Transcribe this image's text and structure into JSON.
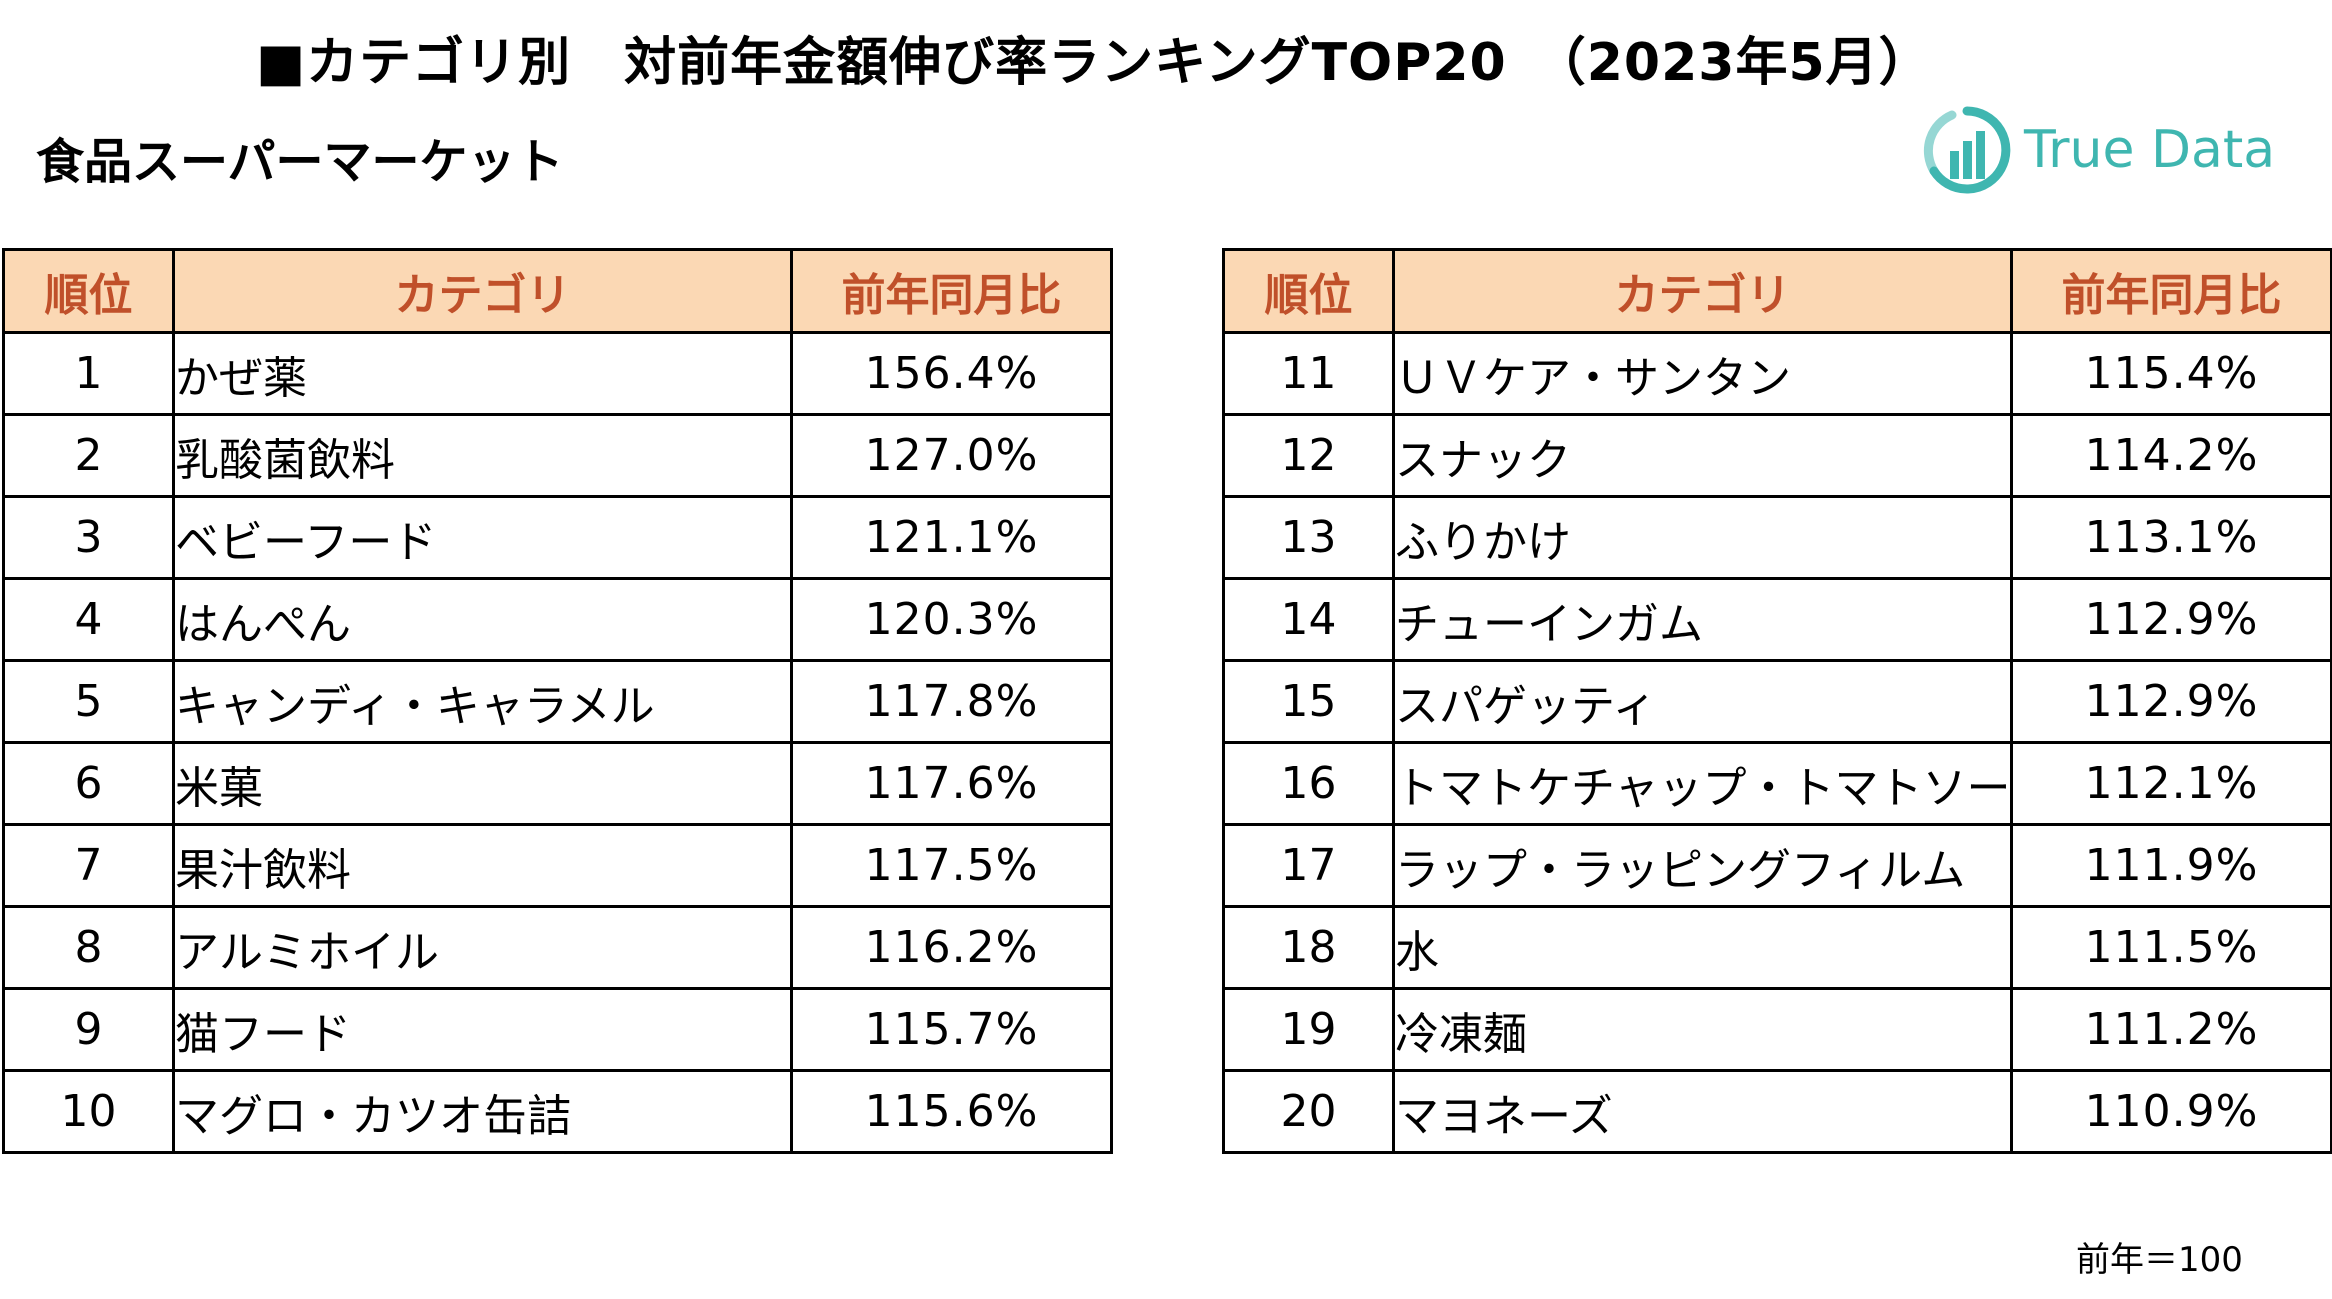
{
  "title": "■カテゴリ別　対前年金額伸び率ランキングTOP20　（2023年5月）",
  "subtitle": "食品スーパーマーケット",
  "logo": {
    "text": "True Data",
    "color": "#3fb6b0"
  },
  "table": {
    "headers": {
      "rank": "順位",
      "category": "カテゴリ",
      "ratio": "前年同月比"
    },
    "left_rows": [
      {
        "rank": "1",
        "category": "かぜ薬",
        "ratio": "156.4%"
      },
      {
        "rank": "2",
        "category": "乳酸菌飲料",
        "ratio": "127.0%"
      },
      {
        "rank": "3",
        "category": "ベビーフード",
        "ratio": "121.1%"
      },
      {
        "rank": "4",
        "category": "はんぺん",
        "ratio": "120.3%"
      },
      {
        "rank": "5",
        "category": "キャンディ・キャラメル",
        "ratio": "117.8%"
      },
      {
        "rank": "6",
        "category": "米菓",
        "ratio": "117.6%"
      },
      {
        "rank": "7",
        "category": "果汁飲料",
        "ratio": "117.5%"
      },
      {
        "rank": "8",
        "category": "アルミホイル",
        "ratio": "116.2%"
      },
      {
        "rank": "9",
        "category": "猫フード",
        "ratio": "115.7%"
      },
      {
        "rank": "10",
        "category": "マグロ・カツオ缶詰",
        "ratio": "115.6%"
      }
    ],
    "right_rows": [
      {
        "rank": "11",
        "category": "ＵＶケア・サンタン",
        "ratio": "115.4%"
      },
      {
        "rank": "12",
        "category": "スナック",
        "ratio": "114.2%"
      },
      {
        "rank": "13",
        "category": "ふりかけ",
        "ratio": "113.1%"
      },
      {
        "rank": "14",
        "category": "チューインガム",
        "ratio": "112.9%"
      },
      {
        "rank": "15",
        "category": "スパゲッティ",
        "ratio": "112.9%"
      },
      {
        "rank": "16",
        "category": "トマトケチャップ・トマトソース",
        "ratio": "112.1%"
      },
      {
        "rank": "17",
        "category": "ラップ・ラッピングフィルム",
        "ratio": "111.9%"
      },
      {
        "rank": "18",
        "category": "水",
        "ratio": "111.5%"
      },
      {
        "rank": "19",
        "category": "冷凍麺",
        "ratio": "111.2%"
      },
      {
        "rank": "20",
        "category": "マヨネーズ",
        "ratio": "110.9%"
      }
    ]
  },
  "note": "前年＝100",
  "colors": {
    "header_bg": "#fbd8b4",
    "header_text": "#c0502a"
  }
}
